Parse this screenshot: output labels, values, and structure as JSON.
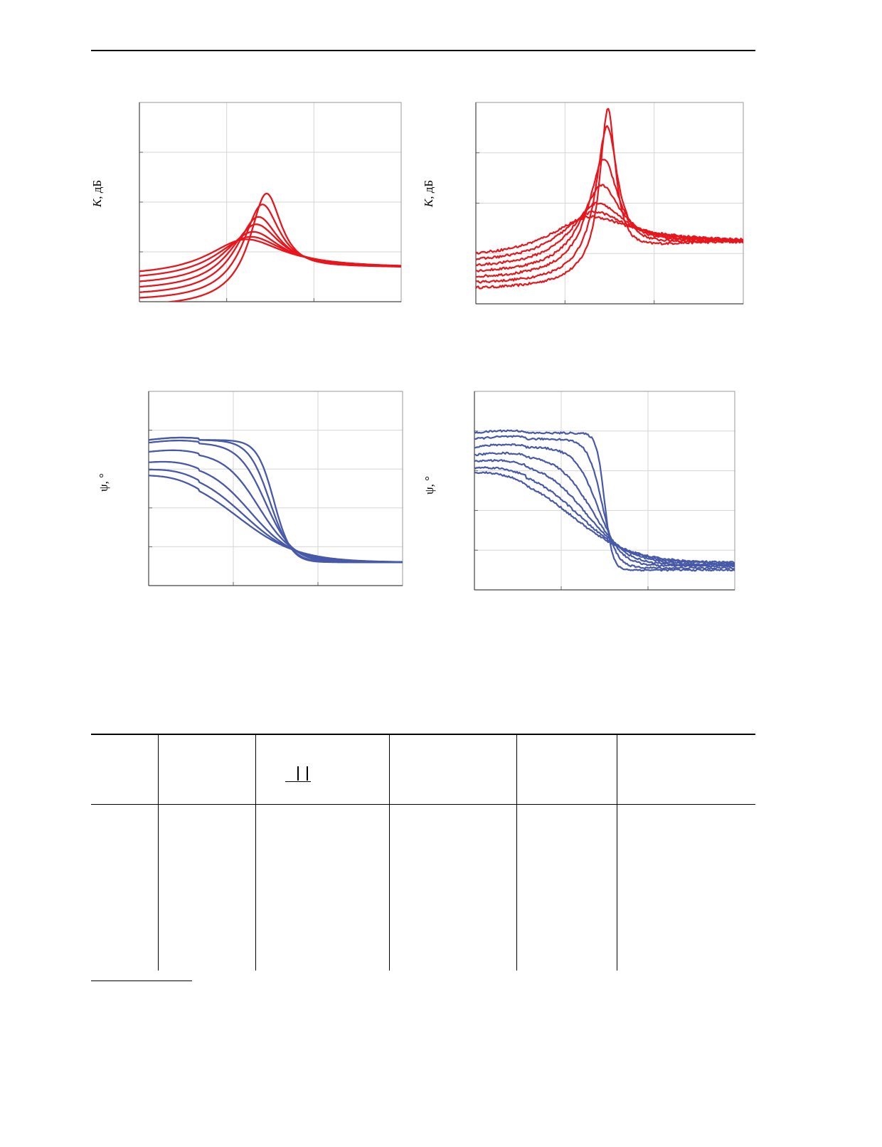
{
  "page": {
    "top_rule": true,
    "footnote_rule": true
  },
  "figure": {
    "panels": [
      {
        "id": "amp-left",
        "ylabel_symbol": "K",
        "ylabel_unit": ", дБ",
        "color": "#e8161c",
        "grid_cols": 3,
        "grid_rows": 4,
        "noisy": false,
        "chart_data": {
          "type": "line",
          "xlim": [
            0,
            3
          ],
          "ylim": [
            0,
            4
          ],
          "grid": true,
          "series": [
            {
              "peak_x": 1.45,
              "peak_y": 2.17,
              "left_y": -0.1,
              "right_y": 0.67,
              "width": 0.33
            },
            {
              "peak_x": 1.4,
              "peak_y": 1.95,
              "left_y": 0.02,
              "right_y": 0.67,
              "width": 0.38
            },
            {
              "peak_x": 1.35,
              "peak_y": 1.7,
              "left_y": 0.12,
              "right_y": 0.67,
              "width": 0.45
            },
            {
              "peak_x": 1.32,
              "peak_y": 1.55,
              "left_y": 0.22,
              "right_y": 0.67,
              "width": 0.52
            },
            {
              "peak_x": 1.28,
              "peak_y": 1.4,
              "left_y": 0.32,
              "right_y": 0.67,
              "width": 0.6
            },
            {
              "peak_x": 1.25,
              "peak_y": 1.3,
              "left_y": 0.42,
              "right_y": 0.67,
              "width": 0.7
            },
            {
              "peak_x": 1.2,
              "peak_y": 1.25,
              "left_y": 0.5,
              "right_y": 0.67,
              "width": 0.78
            }
          ]
        }
      },
      {
        "id": "amp-right",
        "ylabel_symbol": "K",
        "ylabel_unit": ", дБ",
        "color": "#e8161c",
        "grid_cols": 3,
        "grid_rows": 4,
        "noisy": true,
        "chart_data": {
          "type": "line",
          "xlim": [
            0,
            3
          ],
          "ylim": [
            0,
            4
          ],
          "grid": true,
          "series": [
            {
              "peak_x": 1.48,
              "peak_y": 3.87,
              "left_y": 0.3,
              "right_y": 1.22,
              "width": 0.16
            },
            {
              "peak_x": 1.47,
              "peak_y": 3.52,
              "left_y": 0.4,
              "right_y": 1.22,
              "width": 0.22
            },
            {
              "peak_x": 1.43,
              "peak_y": 2.87,
              "left_y": 0.5,
              "right_y": 1.22,
              "width": 0.3
            },
            {
              "peak_x": 1.4,
              "peak_y": 2.35,
              "left_y": 0.6,
              "right_y": 1.22,
              "width": 0.4
            },
            {
              "peak_x": 1.35,
              "peak_y": 2.0,
              "left_y": 0.7,
              "right_y": 1.22,
              "width": 0.52
            },
            {
              "peak_x": 1.3,
              "peak_y": 1.82,
              "left_y": 0.8,
              "right_y": 1.22,
              "width": 0.65
            },
            {
              "peak_x": 1.25,
              "peak_y": 1.72,
              "left_y": 0.9,
              "right_y": 1.22,
              "width": 0.8
            }
          ]
        }
      },
      {
        "id": "phase-left",
        "ylabel_symbol": "ψ",
        "ylabel_unit": ", °",
        "color": "#4759a8",
        "grid_cols": 3,
        "grid_rows": 5,
        "noisy": false,
        "chart_data": {
          "type": "line",
          "xlim": [
            0,
            3
          ],
          "ylim": [
            0,
            5
          ],
          "grid": true,
          "series": [
            {
              "left_y": 3.75,
              "right_y": 0.6,
              "center_x": 1.48,
              "steep": 10
            },
            {
              "left_y": 3.75,
              "right_y": 0.6,
              "center_x": 1.43,
              "steep": 8
            },
            {
              "left_y": 3.68,
              "right_y": 0.6,
              "center_x": 1.38,
              "steep": 6.2
            },
            {
              "left_y": 3.45,
              "right_y": 0.6,
              "center_x": 1.3,
              "steep": 4.8
            },
            {
              "left_y": 3.2,
              "right_y": 0.6,
              "center_x": 1.2,
              "steep": 3.8
            },
            {
              "left_y": 3.05,
              "right_y": 0.6,
              "center_x": 1.12,
              "steep": 3.2
            },
            {
              "left_y": 2.95,
              "right_y": 0.6,
              "center_x": 1.05,
              "steep": 2.8
            }
          ]
        }
      },
      {
        "id": "phase-right",
        "ylabel_symbol": "ψ",
        "ylabel_unit": ", °",
        "color": "#4759a8",
        "grid_cols": 3,
        "grid_rows": 5,
        "noisy": true,
        "chart_data": {
          "type": "line",
          "xlim": [
            0,
            3
          ],
          "ylim": [
            0,
            5
          ],
          "grid": true,
          "series": [
            {
              "left_y": 3.95,
              "right_y": 0.5,
              "center_x": 1.5,
              "steep": 22
            },
            {
              "left_y": 3.8,
              "right_y": 0.55,
              "center_x": 1.47,
              "steep": 12
            },
            {
              "left_y": 3.6,
              "right_y": 0.6,
              "center_x": 1.42,
              "steep": 7.5
            },
            {
              "left_y": 3.4,
              "right_y": 0.62,
              "center_x": 1.35,
              "steep": 5.2
            },
            {
              "left_y": 3.25,
              "right_y": 0.64,
              "center_x": 1.28,
              "steep": 4.0
            },
            {
              "left_y": 3.12,
              "right_y": 0.66,
              "center_x": 1.2,
              "steep": 3.3
            },
            {
              "left_y": 3.05,
              "right_y": 0.68,
              "center_x": 1.12,
              "steep": 2.9
            }
          ]
        }
      }
    ]
  },
  "table": {
    "columns": 6
  }
}
